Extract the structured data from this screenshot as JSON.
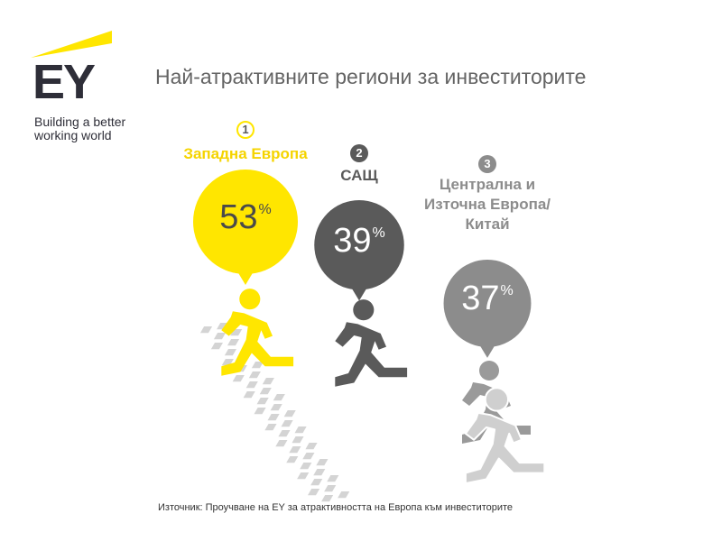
{
  "brand": {
    "name": "EY",
    "tagline_line1": "Building a better",
    "tagline_line2": "working world"
  },
  "colors": {
    "yellow": "#ffe600",
    "dark_grey": "#5a5a5a",
    "mid_grey": "#8c8c8c",
    "light_grey": "#c8c8c8",
    "text_grey": "#646464"
  },
  "chart_data": {
    "type": "bar",
    "title": "Най-атрактивните региони за инвеститорите",
    "source": "Източник: Проучване на EY за атрактивността на Европа към инвеститорите",
    "unit": "%",
    "categories": [
      "Западна Европа",
      "САЩ",
      "Централна и Източна Европа/ Китай"
    ],
    "ranks": [
      "1",
      "2",
      "3"
    ],
    "values": [
      53,
      39,
      37
    ],
    "label_lines": [
      [
        "Западна Европа"
      ],
      [
        "САЩ"
      ],
      [
        "Централна и",
        "Източна Европа/",
        "Китай"
      ]
    ],
    "colors": [
      "#ffe600",
      "#5a5a5a",
      "#8c8c8c"
    ]
  }
}
